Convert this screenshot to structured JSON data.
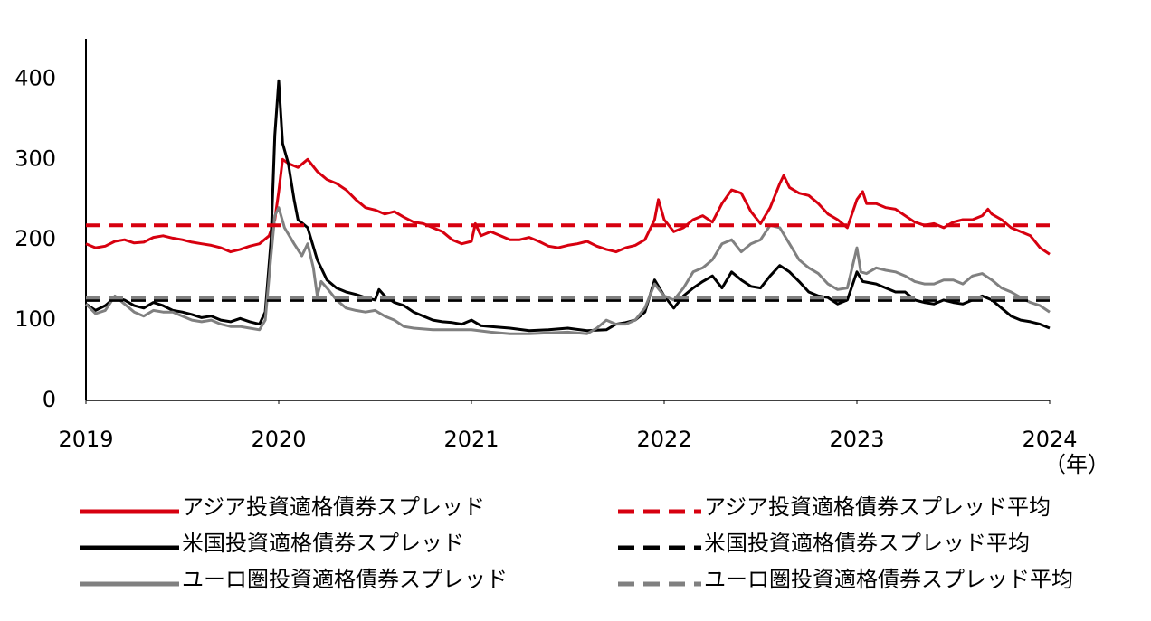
{
  "chart_data": {
    "type": "line",
    "xlabel": "（年）",
    "xlim": [
      2019,
      2024
    ],
    "xticks": [
      2019,
      2020,
      2021,
      2022,
      2023,
      2024
    ],
    "ylim": [
      0,
      450
    ],
    "yticks": [
      0,
      100,
      200,
      300,
      400
    ],
    "grid": false,
    "legend": "bottom",
    "series": [
      {
        "name": "アジア投資適格債券スプレッド",
        "color": "#d7000f",
        "dashed": false,
        "x": [
          2019.0,
          2019.05,
          2019.1,
          2019.15,
          2019.2,
          2019.25,
          2019.3,
          2019.35,
          2019.4,
          2019.45,
          2019.5,
          2019.55,
          2019.6,
          2019.65,
          2019.7,
          2019.75,
          2019.8,
          2019.85,
          2019.9,
          2019.95,
          2019.98,
          2020.0,
          2020.02,
          2020.05,
          2020.1,
          2020.15,
          2020.2,
          2020.25,
          2020.3,
          2020.35,
          2020.4,
          2020.45,
          2020.5,
          2020.55,
          2020.6,
          2020.65,
          2020.7,
          2020.75,
          2020.8,
          2020.85,
          2020.9,
          2020.95,
          2021.0,
          2021.02,
          2021.05,
          2021.1,
          2021.15,
          2021.2,
          2021.25,
          2021.3,
          2021.35,
          2021.4,
          2021.45,
          2021.5,
          2021.55,
          2021.6,
          2021.65,
          2021.7,
          2021.75,
          2021.8,
          2021.85,
          2021.9,
          2021.95,
          2021.97,
          2022.0,
          2022.05,
          2022.1,
          2022.15,
          2022.2,
          2022.25,
          2022.3,
          2022.35,
          2022.4,
          2022.45,
          2022.5,
          2022.55,
          2022.6,
          2022.62,
          2022.65,
          2022.7,
          2022.75,
          2022.8,
          2022.85,
          2022.9,
          2022.95,
          2023.0,
          2023.03,
          2023.05,
          2023.1,
          2023.15,
          2023.2,
          2023.25,
          2023.3,
          2023.35,
          2023.4,
          2023.45,
          2023.5,
          2023.55,
          2023.6,
          2023.65,
          2023.68,
          2023.7,
          2023.75,
          2023.8,
          2023.85,
          2023.9,
          2023.95,
          2024.0
        ],
        "values": [
          195,
          190,
          192,
          198,
          200,
          196,
          197,
          203,
          205,
          202,
          200,
          197,
          195,
          193,
          190,
          185,
          188,
          192,
          195,
          205,
          225,
          260,
          300,
          295,
          290,
          300,
          285,
          275,
          270,
          262,
          250,
          240,
          237,
          232,
          235,
          228,
          222,
          220,
          215,
          210,
          200,
          195,
          198,
          220,
          205,
          210,
          205,
          200,
          200,
          203,
          198,
          192,
          190,
          193,
          195,
          198,
          192,
          188,
          185,
          190,
          193,
          200,
          225,
          250,
          225,
          210,
          215,
          225,
          230,
          222,
          245,
          262,
          258,
          235,
          220,
          240,
          270,
          280,
          265,
          258,
          255,
          245,
          232,
          225,
          215,
          250,
          260,
          245,
          245,
          240,
          238,
          230,
          222,
          218,
          220,
          215,
          222,
          225,
          225,
          230,
          238,
          232,
          225,
          215,
          210,
          205,
          190,
          182
        ]
      },
      {
        "name": "米国投資適格債券スプレッド",
        "color": "#000000",
        "dashed": false,
        "x": [
          2019.0,
          2019.05,
          2019.1,
          2019.15,
          2019.2,
          2019.25,
          2019.3,
          2019.35,
          2019.4,
          2019.45,
          2019.5,
          2019.55,
          2019.6,
          2019.65,
          2019.7,
          2019.75,
          2019.8,
          2019.85,
          2019.9,
          2019.93,
          2019.96,
          2019.98,
          2020.0,
          2020.02,
          2020.05,
          2020.08,
          2020.1,
          2020.15,
          2020.2,
          2020.25,
          2020.3,
          2020.35,
          2020.4,
          2020.45,
          2020.5,
          2020.52,
          2020.55,
          2020.6,
          2020.65,
          2020.7,
          2020.75,
          2020.8,
          2020.85,
          2020.9,
          2020.95,
          2021.0,
          2021.05,
          2021.1,
          2021.2,
          2021.3,
          2021.4,
          2021.5,
          2021.6,
          2021.7,
          2021.75,
          2021.8,
          2021.85,
          2021.9,
          2021.95,
          2022.0,
          2022.05,
          2022.1,
          2022.15,
          2022.2,
          2022.25,
          2022.3,
          2022.35,
          2022.4,
          2022.45,
          2022.5,
          2022.55,
          2022.6,
          2022.65,
          2022.7,
          2022.75,
          2022.8,
          2022.85,
          2022.9,
          2022.95,
          2023.0,
          2023.03,
          2023.1,
          2023.15,
          2023.2,
          2023.25,
          2023.3,
          2023.35,
          2023.4,
          2023.45,
          2023.5,
          2023.55,
          2023.6,
          2023.65,
          2023.7,
          2023.75,
          2023.8,
          2023.85,
          2023.9,
          2023.95,
          2024.0
        ],
        "values": [
          120,
          112,
          118,
          128,
          125,
          118,
          115,
          122,
          118,
          112,
          110,
          107,
          103,
          105,
          100,
          98,
          102,
          98,
          95,
          110,
          200,
          330,
          398,
          320,
          295,
          250,
          225,
          215,
          175,
          150,
          140,
          135,
          132,
          128,
          125,
          138,
          130,
          122,
          118,
          110,
          105,
          100,
          98,
          97,
          95,
          100,
          93,
          92,
          90,
          87,
          88,
          90,
          87,
          88,
          95,
          97,
          100,
          110,
          150,
          130,
          115,
          130,
          140,
          148,
          155,
          140,
          160,
          150,
          142,
          140,
          155,
          168,
          160,
          148,
          135,
          130,
          128,
          120,
          125,
          160,
          148,
          145,
          140,
          135,
          135,
          125,
          122,
          120,
          125,
          122,
          120,
          125,
          130,
          125,
          115,
          105,
          100,
          98,
          95,
          90
        ]
      },
      {
        "name": "ユーロ圏投資適格債券スプレッド",
        "color": "#808080",
        "dashed": false,
        "x": [
          2019.0,
          2019.05,
          2019.1,
          2019.15,
          2019.2,
          2019.25,
          2019.3,
          2019.35,
          2019.4,
          2019.45,
          2019.5,
          2019.55,
          2019.6,
          2019.65,
          2019.7,
          2019.75,
          2019.8,
          2019.85,
          2019.9,
          2019.93,
          2019.96,
          2019.98,
          2020.0,
          2020.03,
          2020.08,
          2020.12,
          2020.15,
          2020.18,
          2020.2,
          2020.22,
          2020.25,
          2020.3,
          2020.35,
          2020.4,
          2020.45,
          2020.5,
          2020.55,
          2020.6,
          2020.65,
          2020.7,
          2020.8,
          2020.9,
          2021.0,
          2021.1,
          2021.2,
          2021.3,
          2021.4,
          2021.5,
          2021.6,
          2021.65,
          2021.7,
          2021.75,
          2021.8,
          2021.85,
          2021.9,
          2021.95,
          2022.0,
          2022.05,
          2022.1,
          2022.15,
          2022.2,
          2022.25,
          2022.3,
          2022.35,
          2022.4,
          2022.45,
          2022.5,
          2022.55,
          2022.6,
          2022.65,
          2022.7,
          2022.75,
          2022.8,
          2022.85,
          2022.9,
          2022.95,
          2023.0,
          2023.02,
          2023.05,
          2023.1,
          2023.15,
          2023.2,
          2023.25,
          2023.3,
          2023.35,
          2023.4,
          2023.45,
          2023.5,
          2023.55,
          2023.6,
          2023.65,
          2023.7,
          2023.75,
          2023.8,
          2023.85,
          2023.9,
          2023.95,
          2024.0
        ],
        "values": [
          120,
          108,
          112,
          130,
          120,
          110,
          105,
          112,
          110,
          110,
          105,
          100,
          98,
          100,
          95,
          92,
          92,
          90,
          88,
          100,
          180,
          230,
          240,
          215,
          195,
          180,
          195,
          165,
          130,
          148,
          140,
          125,
          115,
          112,
          110,
          112,
          105,
          100,
          92,
          90,
          88,
          88,
          88,
          85,
          83,
          83,
          84,
          85,
          83,
          90,
          100,
          95,
          95,
          100,
          115,
          145,
          130,
          125,
          140,
          160,
          165,
          175,
          195,
          200,
          185,
          195,
          200,
          218,
          215,
          195,
          175,
          165,
          158,
          145,
          138,
          140,
          190,
          160,
          158,
          165,
          162,
          160,
          155,
          148,
          145,
          145,
          150,
          150,
          145,
          155,
          158,
          150,
          140,
          135,
          128,
          122,
          118,
          110
        ]
      },
      {
        "name": "アジア投資適格債券スプレッド平均",
        "color": "#d7000f",
        "dashed": true,
        "x": [
          2019,
          2024
        ],
        "values": [
          218,
          218
        ]
      },
      {
        "name": "米国投資適格債券スプレッド平均",
        "color": "#000000",
        "dashed": true,
        "x": [
          2019,
          2024
        ],
        "values": [
          125,
          125
        ]
      },
      {
        "name": "ユーロ圏投資適格債券スプレッド平均",
        "color": "#808080",
        "dashed": true,
        "x": [
          2019,
          2024
        ],
        "values": [
          128,
          128
        ]
      }
    ]
  }
}
